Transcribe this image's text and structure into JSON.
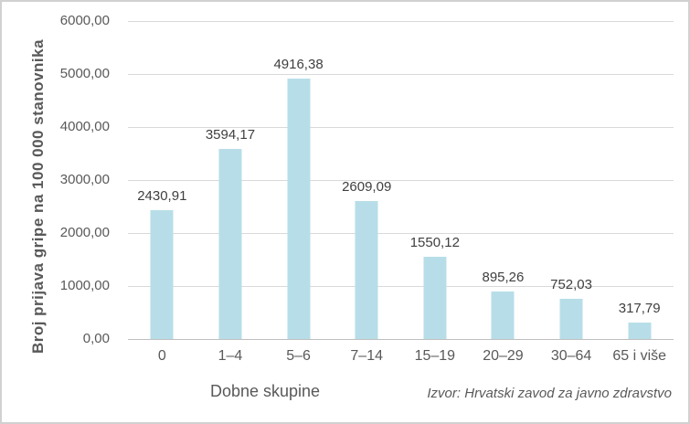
{
  "chart_data": {
    "type": "bar",
    "title": "",
    "categories": [
      "0",
      "1–4",
      "5–6",
      "7–14",
      "15–19",
      "20–29",
      "30–64",
      "65 i više"
    ],
    "values": [
      2430.91,
      3594.17,
      4916.38,
      2609.09,
      1550.12,
      895.26,
      752.03,
      317.79
    ],
    "value_labels": [
      "2430,91",
      "3594,17",
      "4916,38",
      "2609,09",
      "1550,12",
      "895,26",
      "752,03",
      "317,79"
    ],
    "xlabel": "Dobne skupine",
    "ylabel": "Broj prijava gripe na 100 000 stanovnika",
    "ylim": [
      0,
      6000
    ],
    "yticks": [
      {
        "value": 0,
        "label": "0,00"
      },
      {
        "value": 1000,
        "label": "1000,00"
      },
      {
        "value": 2000,
        "label": "2000,00"
      },
      {
        "value": 3000,
        "label": "3000,00"
      },
      {
        "value": 4000,
        "label": "4000,00"
      },
      {
        "value": 5000,
        "label": "5000,00"
      },
      {
        "value": 6000,
        "label": "6000,00"
      }
    ],
    "grid": true,
    "legend": false,
    "source_note": "Izvor: Hrvatski zavod za javno zdravstvo",
    "colors": {
      "bar_fill": "#b7dee8",
      "gridline": "#d9d9d9",
      "axis_line": "#bfbfbf",
      "tick_text": "#595959",
      "data_label_text": "#3f3f3f",
      "border": "#d1d1d1"
    }
  }
}
